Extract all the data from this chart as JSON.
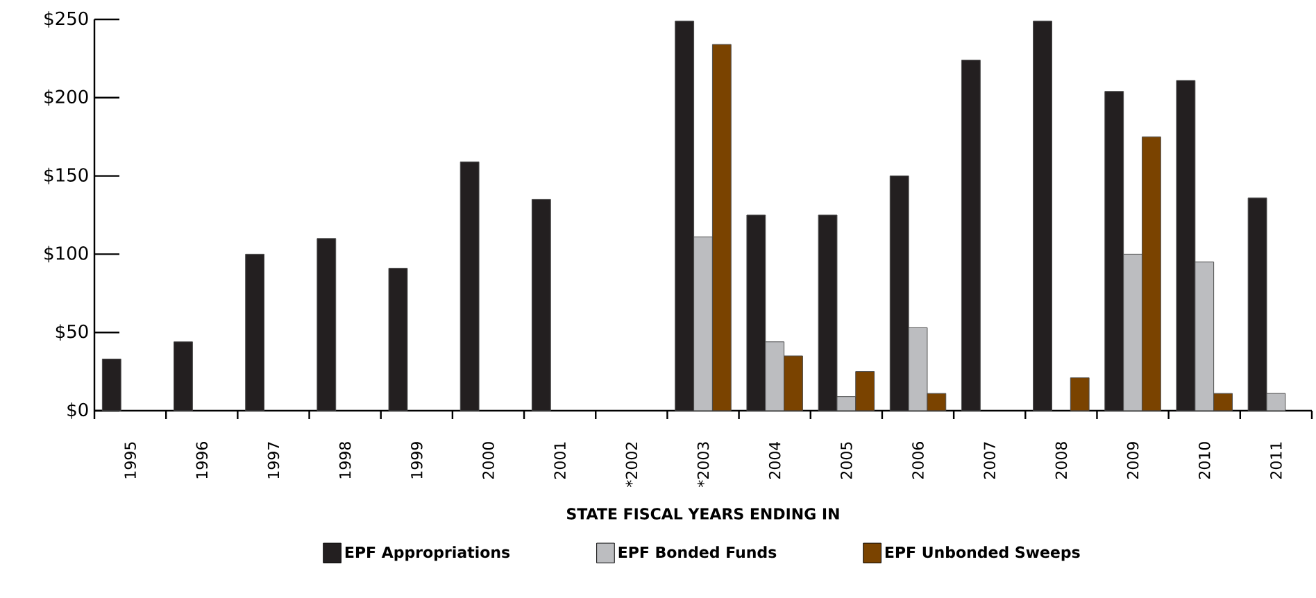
{
  "chart_data": {
    "type": "bar",
    "xlabel": "STATE FISCAL YEARS ENDING IN",
    "categories": [
      "1995",
      "1996",
      "1997",
      "1998",
      "1999",
      "2000",
      "2001",
      "*2002",
      "*2003",
      "2004",
      "2005",
      "2006",
      "2007",
      "2008",
      "2009",
      "2010",
      "2011"
    ],
    "series": [
      {
        "name": "EPF Appropriations",
        "color": "#231f20",
        "values": [
          33,
          44,
          100,
          110,
          91,
          159,
          135,
          null,
          249,
          125,
          125,
          150,
          224,
          249,
          204,
          211,
          136
        ]
      },
      {
        "name": "EPF Bonded Funds",
        "color": "#bcbdc0",
        "values": [
          null,
          null,
          null,
          null,
          null,
          null,
          null,
          null,
          111,
          44,
          9,
          53,
          null,
          null,
          100,
          95,
          11
        ]
      },
      {
        "name": "EPF Unbonded Sweeps",
        "color": "#7a4300",
        "values": [
          null,
          null,
          null,
          null,
          null,
          null,
          null,
          null,
          234,
          35,
          25,
          11,
          null,
          21,
          175,
          11,
          null
        ]
      }
    ],
    "ylim": [
      0,
      250
    ],
    "yticks": [
      {
        "value": 0,
        "label": "$0"
      },
      {
        "value": 50,
        "label": "$50"
      },
      {
        "value": 100,
        "label": "$100"
      },
      {
        "value": 150,
        "label": "$150"
      },
      {
        "value": 200,
        "label": "$200"
      },
      {
        "value": 250,
        "label": "$250"
      }
    ],
    "grid": false,
    "legend": "bottom"
  }
}
